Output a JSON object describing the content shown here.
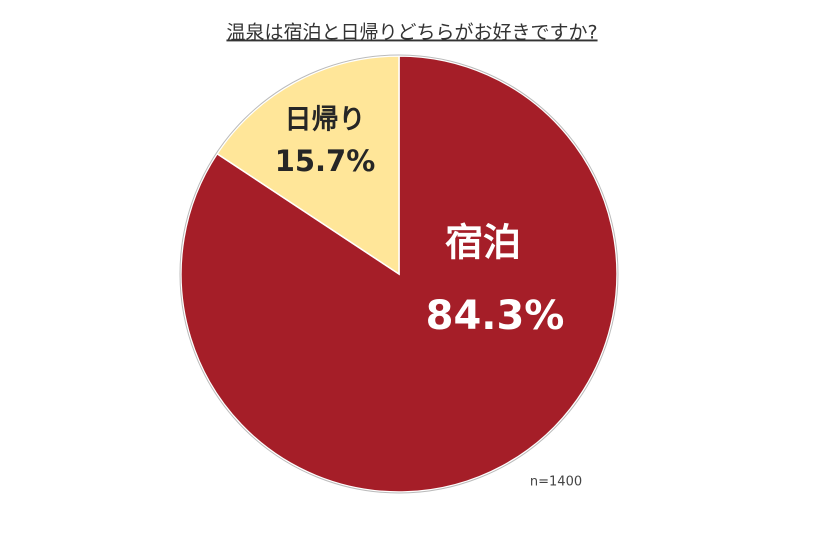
{
  "chart_data": {
    "type": "pie",
    "title": "温泉は宿泊と日帰りどちらがお好きですか?",
    "categories": [
      "宿泊",
      "日帰り"
    ],
    "values": [
      84.3,
      15.7
    ],
    "value_labels": [
      "84.3%",
      "15.7%"
    ],
    "colors": [
      "#a51e28",
      "#ffe699"
    ],
    "label_colors": [
      "#ffffff",
      "#262626"
    ],
    "annotation": "n=1400"
  }
}
